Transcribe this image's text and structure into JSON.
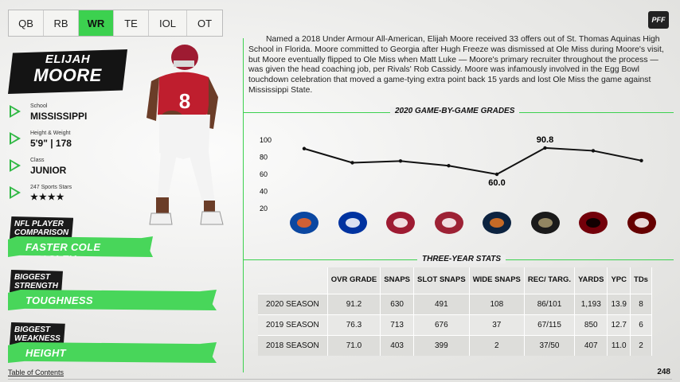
{
  "tabs": [
    "QB",
    "RB",
    "WR",
    "TE",
    "IOL",
    "OT"
  ],
  "active_tab": "WR",
  "brand": "PFF",
  "player": {
    "first": "ELIJAH",
    "last": "MOORE",
    "jersey": "8"
  },
  "info": [
    {
      "label": "School",
      "value": "MISSISSIPPI"
    },
    {
      "label": "Height & Weight",
      "value": "5'9\" | 178"
    },
    {
      "label": "Class",
      "value": "JUNIOR"
    },
    {
      "label": "247 Sports Stars",
      "value": "★★★★"
    }
  ],
  "comparison": {
    "heading_1": "NFL PLAYER",
    "heading_2": "COMPARISON",
    "value": "FASTER COLE BEASLEY"
  },
  "strength": {
    "heading_1": "BIGGEST",
    "heading_2": "STRENGTH",
    "value": "TOUGHNESS"
  },
  "weakness": {
    "heading_1": "BIGGEST",
    "heading_2": "WEAKNESS",
    "value": "HEIGHT"
  },
  "bio": "Named a 2018 Under Armour All-American, Elijah Moore received 33 offers out of St. Thomas Aquinas High School in Florida. Moore committed to Georgia after Hugh Freeze was dismissed at Ole Miss during Moore's visit, but Moore eventually flipped to Ole Miss when Matt Luke — Moore's primary recruiter throughout the process — was given the head coaching job, per Rivals' Rob Cassidy. Moore was infamously involved in the Egg Bowl touchdown celebration that moved a game-tying extra point back 15 yards and lost Ole Miss the game against Mississippi State.",
  "chart_title": "2020 GAME-BY-GAME GRADES",
  "chart_data": {
    "type": "line",
    "title": "2020 GAME-BY-GAME GRADES",
    "x": [
      "Florida",
      "Kentucky",
      "Alabama",
      "Arkansas",
      "Auburn",
      "Vanderbilt",
      "South Carolina",
      "Mississippi State"
    ],
    "values": [
      90.0,
      73.5,
      75.5,
      70.0,
      60.0,
      90.8,
      87.5,
      76.0
    ],
    "data_labels": {
      "4": "60.0",
      "5": "90.8"
    },
    "yticks": [
      20,
      40,
      60,
      80,
      100
    ],
    "ylim": [
      20,
      100
    ],
    "grid": false
  },
  "opponents": [
    {
      "name": "Florida",
      "color": "#0b47a1",
      "accent": "#f26522"
    },
    {
      "name": "Kentucky",
      "color": "#0033a0",
      "accent": "#ffffff"
    },
    {
      "name": "Alabama",
      "color": "#9e1b32",
      "accent": "#ffffff"
    },
    {
      "name": "Arkansas",
      "color": "#9d2235",
      "accent": "#ffffff"
    },
    {
      "name": "Auburn",
      "color": "#0c2340",
      "accent": "#e87722"
    },
    {
      "name": "Vanderbilt",
      "color": "#1a1a1a",
      "accent": "#a8996e"
    },
    {
      "name": "South Carolina",
      "color": "#73000a",
      "accent": "#000000"
    },
    {
      "name": "Mississippi State",
      "color": "#660000",
      "accent": "#ffffff"
    }
  ],
  "table_title": "THREE-YEAR STATS",
  "table": {
    "headers": [
      "OVR GRADE",
      "SNAPS",
      "SLOT SNAPS",
      "WIDE SNAPS",
      "REC/ TARG.",
      "YARDS",
      "YPC",
      "TDs"
    ],
    "rows": [
      {
        "season": "2020 SEASON",
        "cells": [
          "91.2",
          "630",
          "491",
          "108",
          "86/101",
          "1,193",
          "13.9",
          "8"
        ]
      },
      {
        "season": "2019 SEASON",
        "cells": [
          "76.3",
          "713",
          "676",
          "37",
          "67/115",
          "850",
          "12.7",
          "6"
        ]
      },
      {
        "season": "2018 SEASON",
        "cells": [
          "71.0",
          "403",
          "399",
          "2",
          "37/50",
          "407",
          "11.0",
          "2"
        ]
      }
    ]
  },
  "footer": {
    "toc": "Table of Contents",
    "page": "248"
  }
}
